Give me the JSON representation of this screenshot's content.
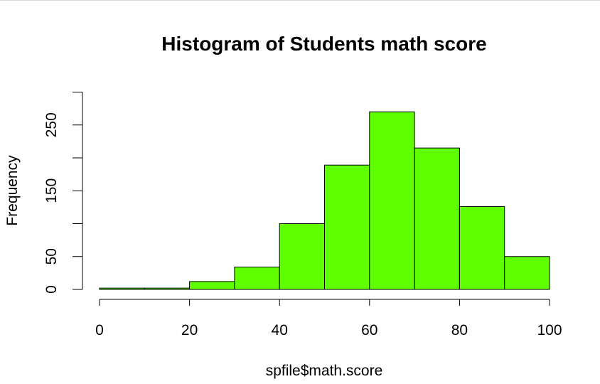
{
  "chart_data": {
    "type": "bar",
    "title": "Histogram of Students math score",
    "xlabel": "spfile$math.score",
    "ylabel": "Frequency",
    "bins": [
      [
        0,
        10
      ],
      [
        10,
        20
      ],
      [
        20,
        30
      ],
      [
        30,
        40
      ],
      [
        40,
        50
      ],
      [
        50,
        60
      ],
      [
        60,
        70
      ],
      [
        70,
        80
      ],
      [
        80,
        90
      ],
      [
        90,
        100
      ]
    ],
    "values": [
      2,
      2,
      12,
      34,
      100,
      189,
      270,
      215,
      126,
      50
    ],
    "xlim": [
      0,
      100
    ],
    "ylim": [
      0,
      300
    ],
    "x_ticks": [
      "0",
      "20",
      "40",
      "60",
      "80",
      "100"
    ],
    "y_ticks": [
      "0",
      "50",
      "150",
      "250"
    ],
    "grid": false,
    "bar_color": "#5fff00",
    "bar_edge_color": "#000000"
  }
}
